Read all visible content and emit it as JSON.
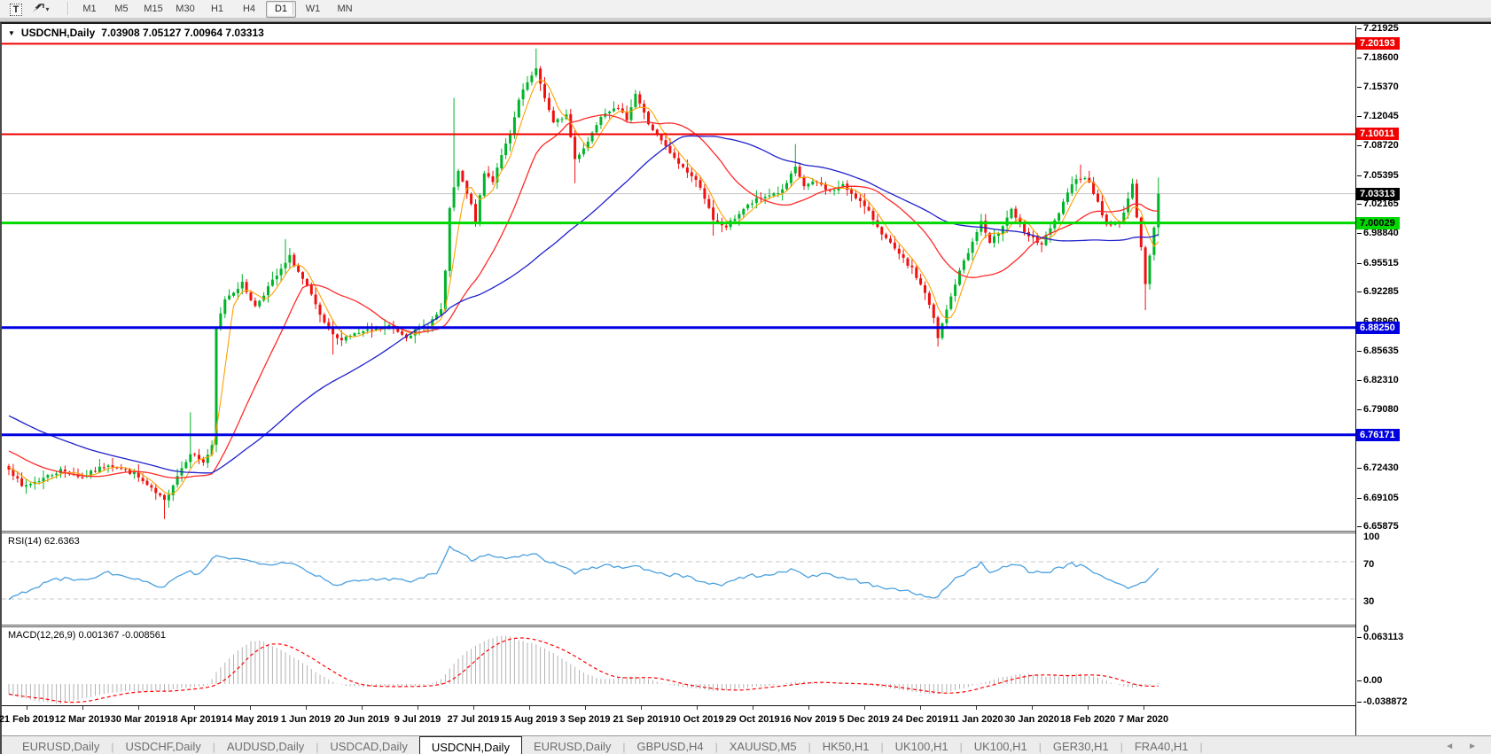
{
  "toolbar": {
    "text_tool_glyph": "T",
    "arrows_caret": "▾",
    "timeframes": [
      "M1",
      "M5",
      "M15",
      "M30",
      "H1",
      "H4",
      "D1",
      "W1",
      "MN"
    ],
    "active_timeframe": "D1"
  },
  "window": {
    "title_symbol": "USDCNH,Daily",
    "title_ohlc": "7.03908 7.05127 7.00964 7.03313",
    "title_triangle": "▼"
  },
  "tabs": {
    "items": [
      "EURUSD,Daily",
      "USDCHF,Daily",
      "AUDUSD,Daily",
      "USDCAD,Daily",
      "USDCNH,Daily",
      "EURUSD,Daily",
      "GBPUSD,H4",
      "XAUUSD,M5",
      "HK50,H1",
      "UK100,H1",
      "UK100,H1",
      "GER30,H1",
      "FRA40,H1"
    ],
    "active_index": 4,
    "scroll_left": "◄",
    "scroll_right": "►"
  },
  "colors": {
    "up": "#00b42a",
    "down": "#ee1111",
    "ma_fast": "#ffa000",
    "ma_mid": "#ff2a2a",
    "ma_slow": "#2020cc",
    "rsi_line": "#4aa0e0",
    "rsi_level": "#c8c8c8",
    "macd_bar": "#b2b2b2",
    "macd_signal": "#ff0000",
    "cur_price_line": "#c4c4c4",
    "hline_red": "#f20000",
    "hline_green": "#00d900",
    "hline_blue": "#0000e0",
    "badge_black": "#000000"
  },
  "chart_data": {
    "type": "candlestick+indicators",
    "symbol": "USDCNH",
    "timeframe": "Daily",
    "bars": 267,
    "ohlc_display": {
      "open": "7.03908",
      "high": "7.05127",
      "low": "7.00964",
      "close": "7.03313"
    },
    "price_axis": {
      "range_top": 7.2246,
      "range_bottom": 6.6545,
      "ticks": [
        "7.21925",
        "7.18600",
        "7.15370",
        "7.12045",
        "7.08720",
        "7.05395",
        "7.02165",
        "6.98840",
        "6.95515",
        "6.92285",
        "6.88960",
        "6.85635",
        "6.82310",
        "6.79080",
        "6.75755",
        "6.72430",
        "6.69105",
        "6.65875"
      ]
    },
    "x_axis_labels": [
      "21 Feb 2019",
      "12 Mar 2019",
      "30 Mar 2019",
      "18 Apr 2019",
      "14 May 2019",
      "1 Jun 2019",
      "20 Jun 2019",
      "9 Jul 2019",
      "27 Jul 2019",
      "15 Aug 2019",
      "3 Sep 2019",
      "21 Sep 2019",
      "10 Oct 2019",
      "29 Oct 2019",
      "16 Nov 2019",
      "5 Dec 2019",
      "24 Dec 2019",
      "11 Jan 2020",
      "30 Jan 2020",
      "18 Feb 2020",
      "7 Mar 2020"
    ],
    "horizontal_lines": [
      {
        "price": 7.20193,
        "label": "7.20193",
        "color": "#f20000",
        "text": "#ffffff",
        "width": 2
      },
      {
        "price": 7.10011,
        "label": "7.10011",
        "color": "#f20000",
        "text": "#ffffff",
        "width": 2
      },
      {
        "price": 7.00029,
        "label": "7.00029",
        "color": "#00d900",
        "text": "#000000",
        "width": 3
      },
      {
        "price": 6.8825,
        "label": "6.88250",
        "color": "#0000e0",
        "text": "#ffffff",
        "width": 3
      },
      {
        "price": 6.76171,
        "label": "6.76171",
        "color": "#0000e0",
        "text": "#ffffff",
        "width": 3
      }
    ],
    "current_price": {
      "value": 7.03313,
      "label": "7.03313"
    },
    "close_keypoints": [
      [
        0,
        6.725
      ],
      [
        3,
        6.703
      ],
      [
        8,
        6.713
      ],
      [
        12,
        6.722
      ],
      [
        17,
        6.714
      ],
      [
        23,
        6.729
      ],
      [
        29,
        6.718
      ],
      [
        33,
        6.7
      ],
      [
        36,
        6.687
      ],
      [
        39,
        6.716
      ],
      [
        42,
        6.742
      ],
      [
        45,
        6.731
      ],
      [
        47,
        6.748
      ],
      [
        48,
        6.88
      ],
      [
        50,
        6.915
      ],
      [
        54,
        6.932
      ],
      [
        57,
        6.906
      ],
      [
        60,
        6.928
      ],
      [
        63,
        6.947
      ],
      [
        65,
        6.962
      ],
      [
        69,
        6.928
      ],
      [
        73,
        6.886
      ],
      [
        76,
        6.869
      ],
      [
        79,
        6.874
      ],
      [
        84,
        6.879
      ],
      [
        88,
        6.884
      ],
      [
        92,
        6.873
      ],
      [
        97,
        6.886
      ],
      [
        100,
        6.902
      ],
      [
        101,
        6.944
      ],
      [
        102,
        7.018
      ],
      [
        104,
        7.058
      ],
      [
        107,
        7.02
      ],
      [
        108,
        7.002
      ],
      [
        110,
        7.056
      ],
      [
        112,
        7.048
      ],
      [
        114,
        7.078
      ],
      [
        116,
        7.098
      ],
      [
        118,
        7.138
      ],
      [
        120,
        7.158
      ],
      [
        122,
        7.172
      ],
      [
        124,
        7.142
      ],
      [
        126,
        7.112
      ],
      [
        129,
        7.122
      ],
      [
        131,
        7.072
      ],
      [
        134,
        7.092
      ],
      [
        137,
        7.122
      ],
      [
        140,
        7.131
      ],
      [
        143,
        7.118
      ],
      [
        145,
        7.146
      ],
      [
        148,
        7.112
      ],
      [
        151,
        7.092
      ],
      [
        154,
        7.072
      ],
      [
        157,
        7.058
      ],
      [
        160,
        7.042
      ],
      [
        163,
        7.002
      ],
      [
        166,
        6.996
      ],
      [
        170,
        7.016
      ],
      [
        173,
        7.026
      ],
      [
        176,
        7.032
      ],
      [
        179,
        7.036
      ],
      [
        182,
        7.062
      ],
      [
        184,
        7.042
      ],
      [
        187,
        7.046
      ],
      [
        190,
        7.036
      ],
      [
        193,
        7.042
      ],
      [
        196,
        7.03
      ],
      [
        199,
        7.012
      ],
      [
        203,
        6.982
      ],
      [
        206,
        6.964
      ],
      [
        209,
        6.948
      ],
      [
        212,
        6.922
      ],
      [
        214,
        6.892
      ],
      [
        215,
        6.87
      ],
      [
        217,
        6.902
      ],
      [
        219,
        6.932
      ],
      [
        221,
        6.958
      ],
      [
        223,
        6.978
      ],
      [
        225,
        7.002
      ],
      [
        227,
        6.976
      ],
      [
        229,
        6.99
      ],
      [
        232,
        7.016
      ],
      [
        235,
        6.988
      ],
      [
        239,
        6.976
      ],
      [
        242,
        7.002
      ],
      [
        245,
        7.032
      ],
      [
        247,
        7.052
      ],
      [
        250,
        7.048
      ],
      [
        252,
        7.022
      ],
      [
        254,
        6.998
      ],
      [
        257,
        7.0
      ],
      [
        259,
        7.028
      ],
      [
        260,
        7.042
      ],
      [
        262,
        6.975
      ],
      [
        263,
        6.932
      ],
      [
        264,
        6.962
      ],
      [
        265,
        6.995
      ],
      [
        266,
        7.0331
      ]
    ],
    "wick_spikes": [
      {
        "i": 36,
        "low": 6.667
      },
      {
        "i": 42,
        "high": 6.787
      },
      {
        "i": 64,
        "high": 6.982
      },
      {
        "i": 75,
        "low": 6.852
      },
      {
        "i": 103,
        "high": 7.141
      },
      {
        "i": 122,
        "high": 7.1965
      },
      {
        "i": 131,
        "low": 7.045
      },
      {
        "i": 163,
        "low": 6.986
      },
      {
        "i": 182,
        "high": 7.089
      },
      {
        "i": 215,
        "low": 6.861
      },
      {
        "i": 248,
        "high": 7.066
      },
      {
        "i": 263,
        "low": 6.902
      },
      {
        "i": 266,
        "high": 7.0513,
        "low": 6.985
      }
    ],
    "moving_averages": [
      {
        "name": "fast",
        "period": 5,
        "color": "#ffa000"
      },
      {
        "name": "mid",
        "period": 21,
        "color": "#ff2a2a"
      },
      {
        "name": "slow",
        "period": 55,
        "color": "#2020cc"
      }
    ],
    "rsi": {
      "label": "RSI(14) 62.6363",
      "scale_labels": [
        "100",
        "70",
        "30",
        "0"
      ],
      "levels": [
        70,
        30
      ],
      "keypoints": [
        [
          0,
          30
        ],
        [
          5,
          40
        ],
        [
          11,
          52
        ],
        [
          17,
          50
        ],
        [
          23,
          58
        ],
        [
          29,
          52
        ],
        [
          35,
          42
        ],
        [
          42,
          60
        ],
        [
          44,
          55
        ],
        [
          48,
          78
        ],
        [
          51,
          74
        ],
        [
          54,
          72
        ],
        [
          60,
          68
        ],
        [
          65,
          70
        ],
        [
          70,
          58
        ],
        [
          76,
          45
        ],
        [
          82,
          50
        ],
        [
          87,
          52
        ],
        [
          93,
          50
        ],
        [
          99,
          58
        ],
        [
          102,
          88
        ],
        [
          104,
          80
        ],
        [
          107,
          72
        ],
        [
          110,
          78
        ],
        [
          114,
          74
        ],
        [
          118,
          76
        ],
        [
          122,
          78
        ],
        [
          125,
          70
        ],
        [
          128,
          65
        ],
        [
          131,
          58
        ],
        [
          134,
          63
        ],
        [
          139,
          66
        ],
        [
          143,
          63
        ],
        [
          145,
          66
        ],
        [
          149,
          60
        ],
        [
          153,
          56
        ],
        [
          157,
          54
        ],
        [
          161,
          48
        ],
        [
          164,
          44
        ],
        [
          167,
          50
        ],
        [
          171,
          55
        ],
        [
          176,
          56
        ],
        [
          182,
          62
        ],
        [
          185,
          54
        ],
        [
          189,
          56
        ],
        [
          194,
          52
        ],
        [
          199,
          46
        ],
        [
          205,
          40
        ],
        [
          210,
          36
        ],
        [
          214,
          29
        ],
        [
          217,
          42
        ],
        [
          220,
          55
        ],
        [
          223,
          62
        ],
        [
          225,
          68
        ],
        [
          227,
          60
        ],
        [
          230,
          64
        ],
        [
          233,
          68
        ],
        [
          236,
          60
        ],
        [
          240,
          58
        ],
        [
          243,
          63
        ],
        [
          246,
          68
        ],
        [
          249,
          64
        ],
        [
          252,
          58
        ],
        [
          255,
          50
        ],
        [
          259,
          42
        ],
        [
          262,
          46
        ],
        [
          264,
          52
        ],
        [
          266,
          63
        ]
      ]
    },
    "macd": {
      "label": "MACD(12,26,9) 0.001367 -0.008561",
      "scale_labels": [
        "0.063113",
        "0.00",
        "-0.038872"
      ],
      "range_max": 0.063113,
      "range_min": -0.038872,
      "keypoints": [
        [
          0,
          -0.018
        ],
        [
          4,
          -0.026
        ],
        [
          8,
          -0.031
        ],
        [
          12,
          -0.034
        ],
        [
          16,
          -0.028
        ],
        [
          20,
          -0.02
        ],
        [
          24,
          -0.015
        ],
        [
          28,
          -0.012
        ],
        [
          32,
          -0.013
        ],
        [
          36,
          -0.012
        ],
        [
          40,
          -0.007
        ],
        [
          44,
          -0.004
        ],
        [
          46,
          -0.002
        ],
        [
          48,
          0.016
        ],
        [
          50,
          0.028
        ],
        [
          52,
          0.038
        ],
        [
          54,
          0.048
        ],
        [
          56,
          0.055
        ],
        [
          58,
          0.057
        ],
        [
          60,
          0.052
        ],
        [
          63,
          0.044
        ],
        [
          66,
          0.034
        ],
        [
          69,
          0.024
        ],
        [
          72,
          0.012
        ],
        [
          75,
          0.003
        ],
        [
          78,
          -0.003
        ],
        [
          82,
          -0.005
        ],
        [
          86,
          -0.004
        ],
        [
          90,
          -0.005
        ],
        [
          94,
          -0.003
        ],
        [
          97,
          -0.001
        ],
        [
          100,
          0.006
        ],
        [
          102,
          0.02
        ],
        [
          104,
          0.033
        ],
        [
          106,
          0.042
        ],
        [
          108,
          0.05
        ],
        [
          110,
          0.056
        ],
        [
          112,
          0.06
        ],
        [
          114,
          0.063
        ],
        [
          116,
          0.061
        ],
        [
          118,
          0.057
        ],
        [
          120,
          0.054
        ],
        [
          122,
          0.051
        ],
        [
          124,
          0.046
        ],
        [
          126,
          0.04
        ],
        [
          128,
          0.033
        ],
        [
          130,
          0.026
        ],
        [
          132,
          0.018
        ],
        [
          134,
          0.012
        ],
        [
          136,
          0.008
        ],
        [
          138,
          0.006
        ],
        [
          140,
          0.007
        ],
        [
          142,
          0.009
        ],
        [
          144,
          0.01
        ],
        [
          146,
          0.009
        ],
        [
          148,
          0.006
        ],
        [
          150,
          0.003
        ],
        [
          152,
          0.0
        ],
        [
          154,
          -0.003
        ],
        [
          156,
          -0.005
        ],
        [
          158,
          -0.007
        ],
        [
          160,
          -0.009
        ],
        [
          162,
          -0.011
        ],
        [
          164,
          -0.012
        ],
        [
          166,
          -0.011
        ],
        [
          168,
          -0.009
        ],
        [
          170,
          -0.007
        ],
        [
          172,
          -0.005
        ],
        [
          174,
          -0.004
        ],
        [
          176,
          -0.003
        ],
        [
          178,
          -0.001
        ],
        [
          180,
          0.001
        ],
        [
          182,
          0.003
        ],
        [
          184,
          0.003
        ],
        [
          186,
          0.002
        ],
        [
          188,
          0.001
        ],
        [
          190,
          0.0
        ],
        [
          192,
          0.001
        ],
        [
          194,
          0.001
        ],
        [
          196,
          0.0
        ],
        [
          198,
          -0.002
        ],
        [
          200,
          -0.004
        ],
        [
          202,
          -0.006
        ],
        [
          204,
          -0.008
        ],
        [
          206,
          -0.01
        ],
        [
          208,
          -0.012
        ],
        [
          210,
          -0.014
        ],
        [
          212,
          -0.016
        ],
        [
          214,
          -0.018
        ],
        [
          216,
          -0.017
        ],
        [
          218,
          -0.013
        ],
        [
          220,
          -0.009
        ],
        [
          222,
          -0.005
        ],
        [
          224,
          -0.001
        ],
        [
          226,
          0.003
        ],
        [
          228,
          0.006
        ],
        [
          230,
          0.009
        ],
        [
          232,
          0.011
        ],
        [
          234,
          0.013
        ],
        [
          236,
          0.013
        ],
        [
          238,
          0.012
        ],
        [
          240,
          0.01
        ],
        [
          242,
          0.01
        ],
        [
          244,
          0.011
        ],
        [
          246,
          0.013
        ],
        [
          248,
          0.013
        ],
        [
          250,
          0.011
        ],
        [
          252,
          0.008
        ],
        [
          254,
          0.004
        ],
        [
          256,
          0.0
        ],
        [
          258,
          -0.004
        ],
        [
          260,
          -0.006
        ],
        [
          262,
          -0.005
        ],
        [
          264,
          -0.002
        ],
        [
          266,
          0.0014
        ]
      ]
    }
  }
}
